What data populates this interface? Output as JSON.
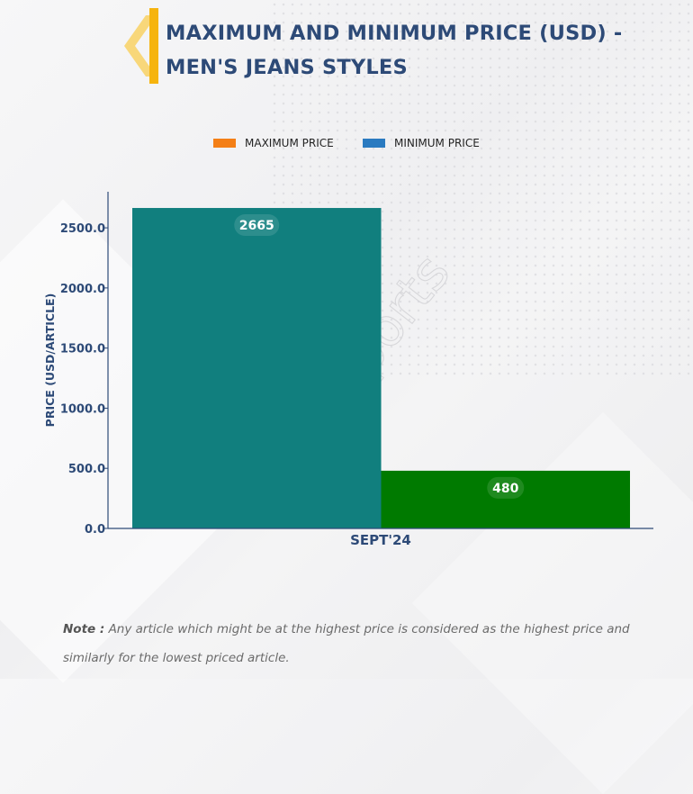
{
  "header": {
    "title_line1": "MAXIMUM AND MINIMUM PRICE (USD) -",
    "title_line2": "MEN'S JEANS STYLES"
  },
  "colors": {
    "title": "#2d4a77",
    "logo_bar": "#f6b40e",
    "logo_chevron": "#f8d77a",
    "axis": "#2d4a77"
  },
  "watermark": "D&J Reports",
  "chart_data": {
    "type": "bar",
    "categories": [
      "SEPT'24"
    ],
    "series": [
      {
        "name": "MAXIMUM PRICE",
        "values": [
          2665
        ],
        "color": "#117f7e",
        "legend_color": "#f47f16"
      },
      {
        "name": "MINIMUM PRICE",
        "values": [
          480
        ],
        "color": "#007a00",
        "legend_color": "#2a7ac0"
      }
    ],
    "data_labels": [
      "2665",
      "480"
    ],
    "yticks": [
      "0.0",
      "500.0",
      "1000.0",
      "1500.0",
      "2000.0",
      "2500.0"
    ],
    "ylim": [
      0,
      2800
    ],
    "ylabel": "PRICE (USD/ARTICLE)",
    "xlabel": "",
    "grid": false,
    "legend_position": "top-center"
  },
  "note": {
    "label": "Note :",
    "text": " Any article which might be at the highest price is considered as the highest price and similarly for the lowest priced article."
  }
}
